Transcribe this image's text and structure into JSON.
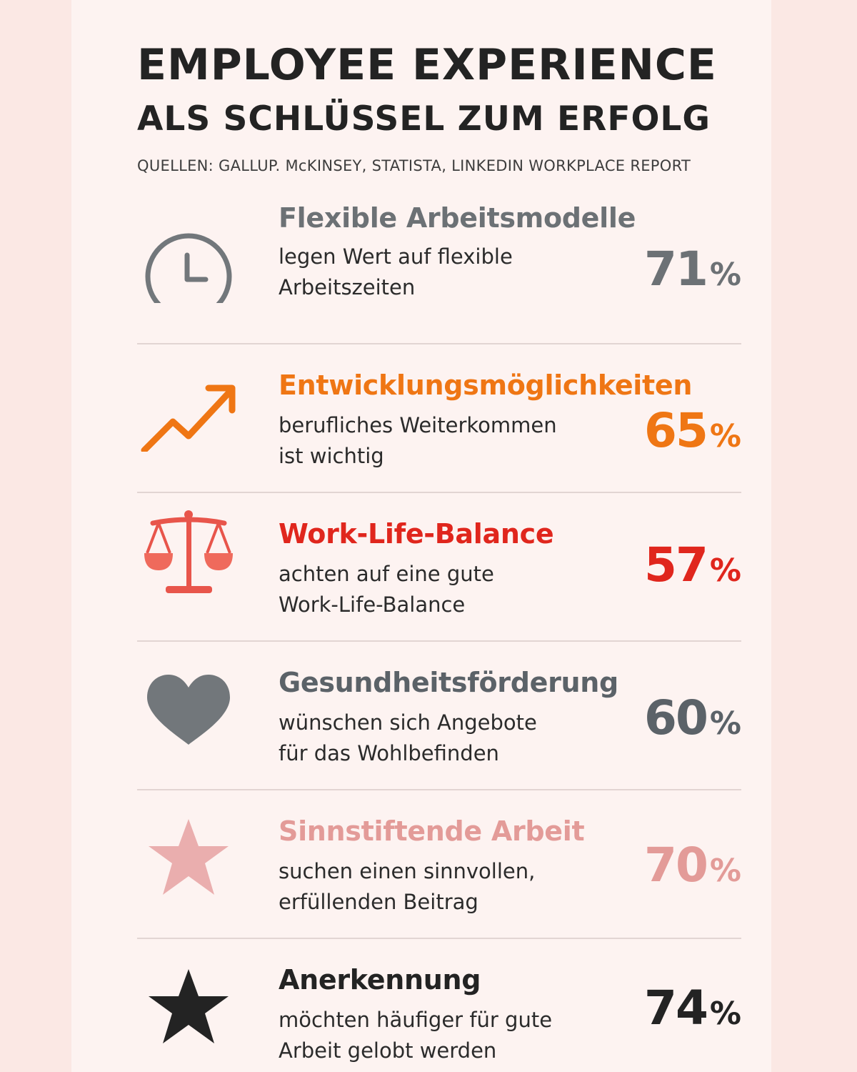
{
  "header": {
    "title_line1": "EMPLOYEE EXPERIENCE",
    "title_line2": "ALS SCHLÜSSEL ZUM ERFOLG",
    "sources": "QUELLEN: GALLUP. McKINSEY, STATISTA, LINKEDIN WORKPLACE REPORT"
  },
  "items": [
    {
      "icon": "clock-icon",
      "color": "#6c7175",
      "heading": "Flexible Arbeitsmodelle",
      "desc1": "legen Wert auf flexible",
      "desc2": "Arbeitszeiten",
      "value": "71",
      "unit": "%"
    },
    {
      "icon": "trending-up-arrow-icon",
      "color": "#ef7614",
      "heading": "Entwicklungsmöglichkeiten",
      "desc1": "berufliches Weiterkommen",
      "desc2": "ist wichtig",
      "value": "65",
      "unit": "%"
    },
    {
      "icon": "balance-scale-icon",
      "color": "#e0261d",
      "heading": "Work-Life-Balance",
      "desc1": "achten auf eine gute",
      "desc2": "Work-Life-Balance",
      "value": "57",
      "unit": "%"
    },
    {
      "icon": "heart-icon",
      "color": "#5b6268",
      "heading": "Gesundheitsförderung",
      "desc1": "wünschen sich Angebote",
      "desc2": "für das Wohlbefinden",
      "value": "60",
      "unit": "%"
    },
    {
      "icon": "star-outline-pink-icon",
      "color": "#e39b98",
      "heading": "Sinnstiftende Arbeit",
      "desc1": "suchen einen sinnvollen,",
      "desc2": "erfüllenden Beitrag",
      "value": "70",
      "unit": "%"
    },
    {
      "icon": "star-icon",
      "color": "#232323",
      "heading": "Anerkennung",
      "desc1": "möchten häufiger für gute",
      "desc2": "Arbeit gelobt werden",
      "value": "74",
      "unit": "%"
    }
  ]
}
